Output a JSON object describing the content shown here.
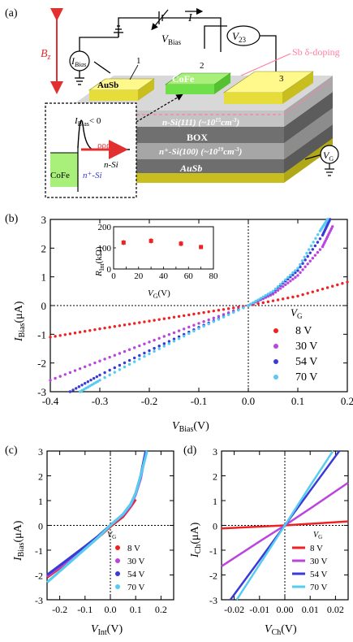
{
  "panel_labels": {
    "a": "(a)",
    "b": "(b)",
    "c": "(c)",
    "d": "(d)"
  },
  "colors": {
    "red": "#ee2222",
    "magenta": "#bb44dd",
    "blue": "#3a3ad6",
    "cyan": "#55ccf0",
    "gold": "#e8e03a",
    "green": "#6fe04a",
    "gray": "#9a9a9a",
    "pink": "#ff7fa0"
  },
  "device": {
    "bz": "B",
    "bz_sub": "z",
    "i_bias": "I",
    "i_bias_sub": "Bias",
    "current": "I",
    "v_bias": "V",
    "v_bias_sub": "Bias",
    "v23": "V",
    "v23_sub": "23",
    "sb_doping": "Sb δ-doping",
    "contact_1_label": "AuSb",
    "contact_2_label": "CoFe",
    "contact_numbers": [
      "1",
      "2",
      "3"
    ],
    "layer_nsi": "n-Si(111) (~10",
    "layer_nsi_exp": "15",
    "layer_nsi_unit": "cm",
    "layer_box": "BOX",
    "layer_npsi": "n⁺-Si(100) (~10",
    "layer_npsi_exp": "19",
    "layer_npsi_unit": "cm",
    "layer_bottom": "AuSb",
    "vg": "V",
    "vg_sub": "G",
    "inset_condition": "I",
    "inset_condition_sub": "Bias",
    "inset_condition_rest": "< 0",
    "inset_cofe": "CoFe",
    "inset_nplus": "n⁺-Si",
    "inset_n": "n-Si",
    "minus_superscript": "-3"
  },
  "legend_title": "V",
  "legend_title_sub": "G",
  "chart_data": [
    {
      "id": "b",
      "type": "scatter",
      "xlabel": "V",
      "xlabel_sub": "Bias",
      "xlabel_unit": "(V)",
      "ylabel": "I",
      "ylabel_sub": "Bias",
      "ylabel_unit": "(μA)",
      "xlim": [
        -0.4,
        0.2
      ],
      "ylim": [
        -3,
        3
      ],
      "xticks": [
        -0.4,
        -0.3,
        -0.2,
        -0.1,
        0.0,
        0.1,
        0.2
      ],
      "xtick_labels": [
        "-0.4",
        "-0.3",
        "-0.2",
        "-0.1",
        "0.0",
        "0.1",
        "0.2"
      ],
      "yticks": [
        -3,
        -2,
        -1,
        0,
        1,
        2,
        3
      ],
      "ytick_labels": [
        "-3",
        "-2",
        "-1",
        "0",
        "1",
        "2",
        "3"
      ],
      "series": [
        {
          "name": "8 V",
          "color": "#ee2222",
          "points": [
            [
              -0.4,
              -1.1
            ],
            [
              -0.3,
              -0.81
            ],
            [
              -0.2,
              -0.54
            ],
            [
              -0.1,
              -0.27
            ],
            [
              0.0,
              0.0
            ],
            [
              0.1,
              0.33
            ],
            [
              0.2,
              0.82
            ]
          ]
        },
        {
          "name": "30 V",
          "color": "#bb44dd",
          "points": [
            [
              -0.4,
              -2.6
            ],
            [
              -0.3,
              -1.93
            ],
            [
              -0.2,
              -1.27
            ],
            [
              -0.1,
              -0.62
            ],
            [
              0.0,
              0.0
            ],
            [
              0.05,
              0.4
            ],
            [
              0.1,
              1.05
            ],
            [
              0.15,
              2.05
            ],
            [
              0.17,
              2.75
            ]
          ]
        },
        {
          "name": "54 V",
          "color": "#3a3ad6",
          "points": [
            [
              -0.36,
              -3.0
            ],
            [
              -0.3,
              -2.42
            ],
            [
              -0.2,
              -1.57
            ],
            [
              -0.1,
              -0.76
            ],
            [
              0.0,
              0.0
            ],
            [
              0.05,
              0.48
            ],
            [
              0.1,
              1.22
            ],
            [
              0.15,
              2.45
            ],
            [
              0.165,
              3.0
            ]
          ]
        },
        {
          "name": "70 V",
          "color": "#55ccf0",
          "points": [
            [
              -0.34,
              -3.0
            ],
            [
              -0.3,
              -2.6
            ],
            [
              -0.2,
              -1.68
            ],
            [
              -0.1,
              -0.8
            ],
            [
              0.0,
              0.0
            ],
            [
              0.05,
              0.5
            ],
            [
              0.1,
              1.3
            ],
            [
              0.145,
              2.6
            ],
            [
              0.16,
              3.0
            ]
          ]
        }
      ],
      "inset": {
        "ylabel": "R",
        "ylabel_sub": "Int",
        "ylabel_unit": "(kΩ)",
        "xlabel": "V",
        "xlabel_sub": "G",
        "xlabel_unit": "(V)",
        "xlim": [
          0,
          80
        ],
        "ylim": [
          0,
          200
        ],
        "xticks": [
          0,
          10,
          20,
          30,
          40,
          50,
          60,
          70,
          80
        ],
        "xtick_labels": [
          "0",
          "20",
          "40",
          "60",
          "80"
        ],
        "xtick_label_values": [
          0,
          20,
          40,
          60,
          80
        ],
        "ytick_labels": [
          "0",
          "100",
          "200"
        ],
        "ytick_values": [
          0,
          100,
          200
        ],
        "points": [
          [
            8,
            125,
            12
          ],
          [
            30,
            133,
            12
          ],
          [
            54,
            120,
            12
          ],
          [
            70,
            104,
            10
          ]
        ]
      }
    },
    {
      "id": "c",
      "type": "line",
      "xlabel": "V",
      "xlabel_sub": "Int",
      "xlabel_unit": "(V)",
      "ylabel": "I",
      "ylabel_sub": "Bias",
      "ylabel_unit": "(μA)",
      "xlim": [
        -0.25,
        0.25
      ],
      "ylim": [
        -3,
        3
      ],
      "xticks": [
        -0.2,
        -0.1,
        0.0,
        0.1,
        0.2
      ],
      "xtick_labels": [
        "-0.2",
        "-0.1",
        "0.0",
        "0.1",
        "0.2"
      ],
      "yticks": [
        -3,
        -2,
        -1,
        0,
        1,
        2,
        3
      ],
      "ytick_labels": [
        "-3",
        "-2",
        "-1",
        "0",
        "1",
        "2",
        "3"
      ],
      "series": [
        {
          "name": "8 V",
          "color": "#ee2222",
          "points": [
            [
              -0.25,
              -2.1
            ],
            [
              -0.2,
              -1.72
            ],
            [
              -0.1,
              -0.92
            ],
            [
              -0.05,
              -0.5
            ],
            [
              0.0,
              -0.05
            ],
            [
              0.05,
              0.35
            ],
            [
              0.08,
              0.75
            ],
            [
              0.1,
              1.05
            ]
          ]
        },
        {
          "name": "30 V",
          "color": "#bb44dd",
          "points": [
            [
              -0.25,
              -2.05
            ],
            [
              -0.2,
              -1.68
            ],
            [
              -0.1,
              -0.9
            ],
            [
              -0.05,
              -0.47
            ],
            [
              0.0,
              0.0
            ],
            [
              0.05,
              0.42
            ],
            [
              0.08,
              0.8
            ],
            [
              0.1,
              1.25
            ],
            [
              0.12,
              1.9
            ],
            [
              0.135,
              2.7
            ]
          ]
        },
        {
          "name": "54 V",
          "color": "#3a3ad6",
          "points": [
            [
              -0.25,
              -2.0
            ],
            [
              -0.2,
              -1.62
            ],
            [
              -0.1,
              -0.85
            ],
            [
              -0.05,
              -0.45
            ],
            [
              0.0,
              0.0
            ],
            [
              0.05,
              0.45
            ],
            [
              0.08,
              0.85
            ],
            [
              0.1,
              1.3
            ],
            [
              0.12,
              2.0
            ],
            [
              0.14,
              3.0
            ]
          ]
        },
        {
          "name": "70 V",
          "color": "#55ccf0",
          "points": [
            [
              -0.25,
              -2.3
            ],
            [
              -0.2,
              -1.85
            ],
            [
              -0.1,
              -0.95
            ],
            [
              -0.05,
              -0.5
            ],
            [
              0.0,
              0.0
            ],
            [
              0.05,
              0.45
            ],
            [
              0.08,
              0.85
            ],
            [
              0.1,
              1.3
            ],
            [
              0.12,
              2.0
            ],
            [
              0.145,
              3.0
            ]
          ]
        }
      ]
    },
    {
      "id": "d",
      "type": "line",
      "xlabel": "V",
      "xlabel_sub": "Ch",
      "xlabel_unit": "(V)",
      "ylabel": "I",
      "ylabel_sub": "Ch",
      "ylabel_unit": "(μA)",
      "xlim": [
        -0.025,
        0.025
      ],
      "ylim": [
        -3,
        3
      ],
      "xticks": [
        -0.02,
        -0.01,
        0.0,
        0.01,
        0.02
      ],
      "xtick_labels": [
        "-0.02",
        "-0.01",
        "0.00",
        "0.01",
        "0.02"
      ],
      "yticks": [
        -3,
        -2,
        -1,
        0,
        1,
        2,
        3
      ],
      "ytick_labels": [
        "-3",
        "-2",
        "-1",
        "0",
        "1",
        "2",
        "3"
      ],
      "series": [
        {
          "name": "8 V",
          "color": "#ee2222",
          "points": [
            [
              -0.025,
              -0.12
            ],
            [
              0.0,
              0.0
            ],
            [
              0.025,
              0.16
            ]
          ]
        },
        {
          "name": "30 V",
          "color": "#bb44dd",
          "points": [
            [
              -0.025,
              -1.65
            ],
            [
              -0.01,
              -0.65
            ],
            [
              0.0,
              0.0
            ],
            [
              0.01,
              0.68
            ],
            [
              0.025,
              1.72
            ]
          ]
        },
        {
          "name": "54 V",
          "color": "#3a3ad6",
          "points": [
            [
              -0.0215,
              -3.0
            ],
            [
              -0.01,
              -1.4
            ],
            [
              0.0,
              0.0
            ],
            [
              0.01,
              1.4
            ],
            [
              0.0215,
              3.0
            ]
          ]
        },
        {
          "name": "70 V",
          "color": "#55ccf0",
          "points": [
            [
              -0.019,
              -3.0
            ],
            [
              -0.01,
              -1.58
            ],
            [
              0.0,
              0.0
            ],
            [
              0.01,
              1.6
            ],
            [
              0.019,
              3.0
            ]
          ]
        }
      ]
    }
  ]
}
